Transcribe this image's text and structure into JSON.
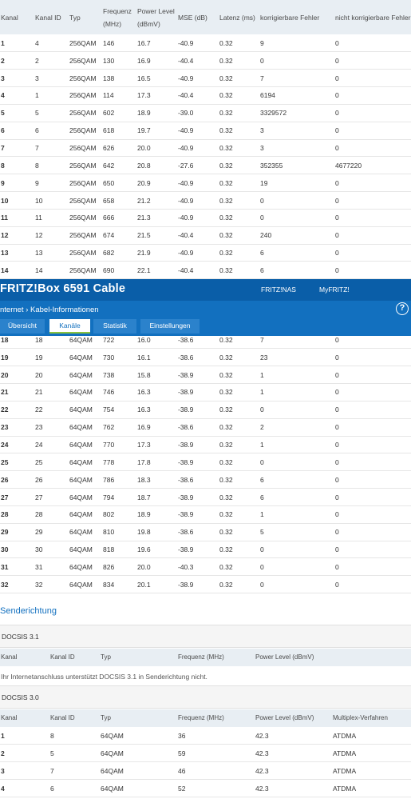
{
  "downstream": {
    "headers": [
      "Kanal",
      "Kanal ID",
      "Typ",
      "Frequenz",
      "(MHz)",
      "Power Level",
      "(dBmV)",
      "MSE (dB)",
      "Latenz (ms)",
      "korrigierbare Fehler",
      "nicht korrigierbare Fehler"
    ],
    "rows_top": [
      [
        "1",
        "4",
        "256QAM",
        "146",
        "16.7",
        "-40.9",
        "0.32",
        "9",
        "0"
      ],
      [
        "2",
        "2",
        "256QAM",
        "130",
        "16.9",
        "-40.4",
        "0.32",
        "0",
        "0"
      ],
      [
        "3",
        "3",
        "256QAM",
        "138",
        "16.5",
        "-40.9",
        "0.32",
        "7",
        "0"
      ],
      [
        "4",
        "1",
        "256QAM",
        "114",
        "17.3",
        "-40.4",
        "0.32",
        "6194",
        "0"
      ],
      [
        "5",
        "5",
        "256QAM",
        "602",
        "18.9",
        "-39.0",
        "0.32",
        "3329572",
        "0"
      ],
      [
        "6",
        "6",
        "256QAM",
        "618",
        "19.7",
        "-40.9",
        "0.32",
        "3",
        "0"
      ],
      [
        "7",
        "7",
        "256QAM",
        "626",
        "20.0",
        "-40.9",
        "0.32",
        "3",
        "0"
      ],
      [
        "8",
        "8",
        "256QAM",
        "642",
        "20.8",
        "-27.6",
        "0.32",
        "352355",
        "4677220"
      ],
      [
        "9",
        "9",
        "256QAM",
        "650",
        "20.9",
        "-40.9",
        "0.32",
        "19",
        "0"
      ],
      [
        "10",
        "10",
        "256QAM",
        "658",
        "21.2",
        "-40.9",
        "0.32",
        "0",
        "0"
      ],
      [
        "11",
        "11",
        "256QAM",
        "666",
        "21.3",
        "-40.9",
        "0.32",
        "0",
        "0"
      ],
      [
        "12",
        "12",
        "256QAM",
        "674",
        "21.5",
        "-40.4",
        "0.32",
        "240",
        "0"
      ],
      [
        "13",
        "13",
        "256QAM",
        "682",
        "21.9",
        "-40.9",
        "0.32",
        "6",
        "0"
      ],
      [
        "14",
        "14",
        "256QAM",
        "690",
        "22.1",
        "-40.4",
        "0.32",
        "6",
        "0"
      ]
    ],
    "rows_bottom": [
      [
        "18",
        "18",
        "64QAM",
        "722",
        "16.0",
        "-38.6",
        "0.32",
        "7",
        "0"
      ],
      [
        "19",
        "19",
        "64QAM",
        "730",
        "16.1",
        "-38.6",
        "0.32",
        "23",
        "0"
      ],
      [
        "20",
        "20",
        "64QAM",
        "738",
        "15.8",
        "-38.9",
        "0.32",
        "1",
        "0"
      ],
      [
        "21",
        "21",
        "64QAM",
        "746",
        "16.3",
        "-38.9",
        "0.32",
        "1",
        "0"
      ],
      [
        "22",
        "22",
        "64QAM",
        "754",
        "16.3",
        "-38.9",
        "0.32",
        "0",
        "0"
      ],
      [
        "23",
        "23",
        "64QAM",
        "762",
        "16.9",
        "-38.6",
        "0.32",
        "2",
        "0"
      ],
      [
        "24",
        "24",
        "64QAM",
        "770",
        "17.3",
        "-38.9",
        "0.32",
        "1",
        "0"
      ],
      [
        "25",
        "25",
        "64QAM",
        "778",
        "17.8",
        "-38.9",
        "0.32",
        "0",
        "0"
      ],
      [
        "26",
        "26",
        "64QAM",
        "786",
        "18.3",
        "-38.6",
        "0.32",
        "6",
        "0"
      ],
      [
        "27",
        "27",
        "64QAM",
        "794",
        "18.7",
        "-38.9",
        "0.32",
        "6",
        "0"
      ],
      [
        "28",
        "28",
        "64QAM",
        "802",
        "18.9",
        "-38.9",
        "0.32",
        "1",
        "0"
      ],
      [
        "29",
        "29",
        "64QAM",
        "810",
        "19.8",
        "-38.6",
        "0.32",
        "5",
        "0"
      ],
      [
        "30",
        "30",
        "64QAM",
        "818",
        "19.6",
        "-38.9",
        "0.32",
        "0",
        "0"
      ],
      [
        "31",
        "31",
        "64QAM",
        "826",
        "20.0",
        "-40.3",
        "0.32",
        "0",
        "0"
      ],
      [
        "32",
        "32",
        "64QAM",
        "834",
        "20.1",
        "-38.9",
        "0.32",
        "0",
        "0"
      ]
    ]
  },
  "header": {
    "brand": "FRITZ!Box 6591 Cable",
    "links": [
      "FRITZ!NAS",
      "MyFRITZ!"
    ],
    "breadcrumb_parent": "nternet",
    "breadcrumb_sep": "›",
    "breadcrumb_current": "Kabel-Informationen",
    "help_label": "?",
    "tabs": [
      "Übersicht",
      "Kanäle",
      "Statistik",
      "Einstellungen"
    ],
    "active_tab": "Kanäle"
  },
  "upstream": {
    "title": "Senderichtung",
    "docsis31": {
      "label": "DOCSIS 3.1",
      "headers": [
        "Kanal",
        "Kanal ID",
        "Typ",
        "Frequenz (MHz)",
        "Power Level (dBmV)"
      ],
      "note": "Ihr Internetanschluss unterstützt DOCSIS 3.1 in Senderichtung nicht."
    },
    "docsis30": {
      "label": "DOCSIS 3.0",
      "headers": [
        "Kanal",
        "Kanal ID",
        "Typ",
        "Frequenz (MHz)",
        "Power Level (dBmV)",
        "Multiplex-Verfahren"
      ],
      "rows": [
        [
          "1",
          "8",
          "64QAM",
          "36",
          "42.3",
          "ATDMA"
        ],
        [
          "2",
          "5",
          "64QAM",
          "59",
          "42.3",
          "ATDMA"
        ],
        [
          "3",
          "7",
          "64QAM",
          "46",
          "42.3",
          "ATDMA"
        ],
        [
          "4",
          "6",
          "64QAM",
          "52",
          "42.3",
          "ATDMA"
        ]
      ]
    }
  },
  "colors": {
    "topbar": "#0a5ea8",
    "crumbbar": "#1270bf",
    "tab": "#2b82cc",
    "active_underline": "#8ac33d"
  }
}
